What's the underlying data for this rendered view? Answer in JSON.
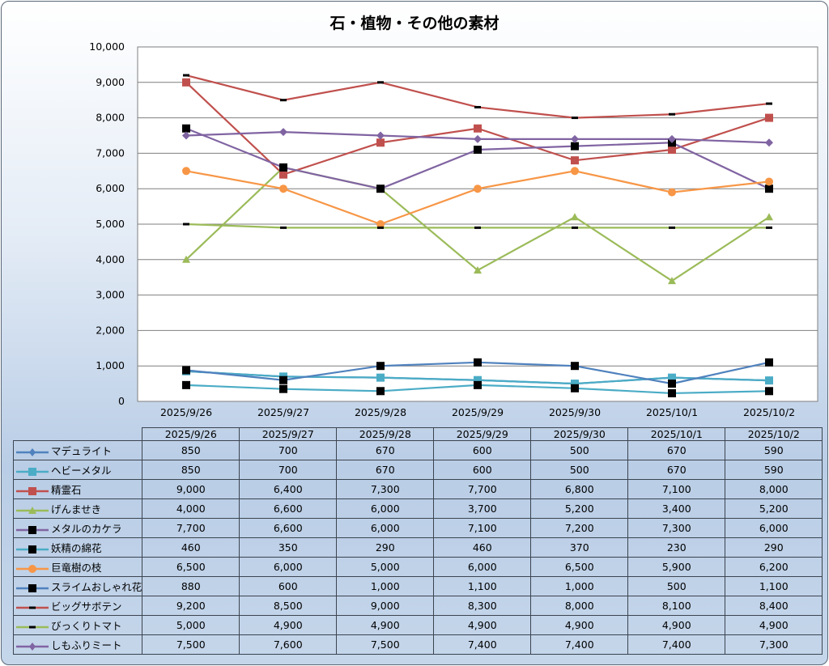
{
  "chart_data": {
    "type": "line",
    "title": "石・植物・その他の素材",
    "xlabel": "",
    "ylabel": "",
    "ylim": [
      0,
      10000
    ],
    "yticks": [
      "0",
      "1,000",
      "2,000",
      "3,000",
      "4,000",
      "5,000",
      "6,000",
      "7,000",
      "8,000",
      "9,000",
      "10,000"
    ],
    "grid": true,
    "legend": "data-table-bottom",
    "categories": [
      "2025/9/26",
      "2025/9/27",
      "2025/9/28",
      "2025/9/29",
      "2025/9/30",
      "2025/10/1",
      "2025/10/2"
    ],
    "series": [
      {
        "name": "マデュライト",
        "color": "#4f81bd",
        "marker": "diamond",
        "markerColor": "#4f81bd",
        "values": [
          850,
          700,
          670,
          600,
          500,
          670,
          590
        ],
        "labels": [
          "850",
          "700",
          "670",
          "600",
          "500",
          "670",
          "590"
        ]
      },
      {
        "name": "ヘビーメタル",
        "color": "#4bacc6",
        "marker": "square",
        "markerColor": "#4bacc6",
        "values": [
          850,
          700,
          670,
          600,
          500,
          670,
          590
        ],
        "labels": [
          "850",
          "700",
          "670",
          "600",
          "500",
          "670",
          "590"
        ]
      },
      {
        "name": "精霊石",
        "color": "#c0504d",
        "marker": "square",
        "markerColor": "#c0504d",
        "values": [
          9000,
          6400,
          7300,
          7700,
          6800,
          7100,
          8000
        ],
        "labels": [
          "9,000",
          "6,400",
          "7,300",
          "7,700",
          "6,800",
          "7,100",
          "8,000"
        ]
      },
      {
        "name": "げんませき",
        "color": "#9bbb59",
        "marker": "triangle",
        "markerColor": "#9bbb59",
        "values": [
          4000,
          6600,
          6000,
          3700,
          5200,
          3400,
          5200
        ],
        "labels": [
          "4,000",
          "6,600",
          "6,000",
          "3,700",
          "5,200",
          "3,400",
          "5,200"
        ]
      },
      {
        "name": "メタルのカケラ",
        "color": "#8064a2",
        "marker": "square",
        "markerColor": "#000000",
        "values": [
          7700,
          6600,
          6000,
          7100,
          7200,
          7300,
          6000
        ],
        "labels": [
          "7,700",
          "6,600",
          "6,000",
          "7,100",
          "7,200",
          "7,300",
          "6,000"
        ]
      },
      {
        "name": "妖精の綿花",
        "color": "#4bacc6",
        "marker": "square",
        "markerColor": "#000000",
        "values": [
          460,
          350,
          290,
          460,
          370,
          230,
          290
        ],
        "labels": [
          "460",
          "350",
          "290",
          "460",
          "370",
          "230",
          "290"
        ]
      },
      {
        "name": "巨竜樹の枝",
        "color": "#f79646",
        "marker": "circle",
        "markerColor": "#f79646",
        "values": [
          6500,
          6000,
          5000,
          6000,
          6500,
          5900,
          6200
        ],
        "labels": [
          "6,500",
          "6,000",
          "5,000",
          "6,000",
          "6,500",
          "5,900",
          "6,200"
        ]
      },
      {
        "name": "スライムおしゃれ花",
        "color": "#4f81bd",
        "marker": "square",
        "markerColor": "#000000",
        "values": [
          880,
          600,
          1000,
          1100,
          1000,
          500,
          1100
        ],
        "labels": [
          "880",
          "600",
          "1,000",
          "1,100",
          "1,000",
          "500",
          "1,100"
        ]
      },
      {
        "name": "ビッグサボテン",
        "color": "#c0504d",
        "marker": "dash",
        "markerColor": "#000000",
        "values": [
          9200,
          8500,
          9000,
          8300,
          8000,
          8100,
          8400
        ],
        "labels": [
          "9,200",
          "8,500",
          "9,000",
          "8,300",
          "8,000",
          "8,100",
          "8,400"
        ]
      },
      {
        "name": "びっくりトマト",
        "color": "#9bbb59",
        "marker": "dash",
        "markerColor": "#000000",
        "values": [
          5000,
          4900,
          4900,
          4900,
          4900,
          4900,
          4900
        ],
        "labels": [
          "5,000",
          "4,900",
          "4,900",
          "4,900",
          "4,900",
          "4,900",
          "4,900"
        ]
      },
      {
        "name": "しもふりミート",
        "color": "#8064a2",
        "marker": "diamond",
        "markerColor": "#8064a2",
        "values": [
          7500,
          7600,
          7500,
          7400,
          7400,
          7400,
          7300
        ],
        "labels": [
          "7,500",
          "7,600",
          "7,500",
          "7,400",
          "7,400",
          "7,400",
          "7,300"
        ]
      }
    ]
  }
}
